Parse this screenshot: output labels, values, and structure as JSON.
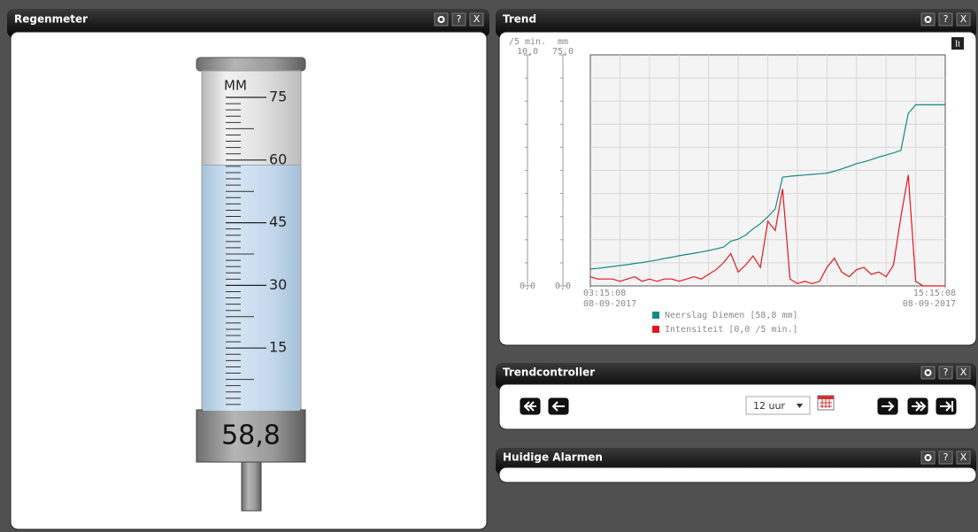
{
  "panels": [
    {
      "title": "Regenmeter",
      "buttons": [
        "?",
        "X"
      ]
    },
    {
      "title": "Trend",
      "buttons": [
        "?",
        "X"
      ]
    },
    {
      "title": "Trendcontroller",
      "buttons": [
        "?",
        "X"
      ]
    },
    {
      "title": "Huidige Alarmen",
      "buttons": [
        "?",
        "X"
      ]
    }
  ],
  "rain_gauge": {
    "unit": "MM",
    "value": 58.8,
    "value_label": "58,8",
    "ylim": [
      0,
      75
    ],
    "yticks": [
      15,
      30,
      45,
      60,
      75
    ]
  },
  "trend": {
    "type": "line",
    "x": [
      "2017-09-08T03:15:08",
      "2017-09-08T03:30:08",
      "2017-09-08T03:45:08",
      "2017-09-08T04:00:08",
      "2017-09-08T04:15:08",
      "2017-09-08T04:30:08",
      "2017-09-08T04:45:08",
      "2017-09-08T05:00:08",
      "2017-09-08T05:15:08",
      "2017-09-08T05:30:08",
      "2017-09-08T05:45:08",
      "2017-09-08T06:00:08",
      "2017-09-08T06:15:08",
      "2017-09-08T06:30:08",
      "2017-09-08T06:45:08",
      "2017-09-08T07:00:08",
      "2017-09-08T07:15:08",
      "2017-09-08T07:30:08",
      "2017-09-08T07:45:08",
      "2017-09-08T08:00:08",
      "2017-09-08T08:15:08",
      "2017-09-08T08:30:08",
      "2017-09-08T08:45:08",
      "2017-09-08T09:00:08",
      "2017-09-08T09:15:08",
      "2017-09-08T09:30:08",
      "2017-09-08T09:45:08",
      "2017-09-08T10:00:08",
      "2017-09-08T10:15:08",
      "2017-09-08T10:30:08",
      "2017-09-08T10:45:08",
      "2017-09-08T11:00:08",
      "2017-09-08T11:15:08",
      "2017-09-08T11:30:08",
      "2017-09-08T11:45:08",
      "2017-09-08T12:00:08",
      "2017-09-08T12:15:08",
      "2017-09-08T12:30:08",
      "2017-09-08T12:45:08",
      "2017-09-08T13:00:08",
      "2017-09-08T13:15:08",
      "2017-09-08T13:30:08",
      "2017-09-08T13:45:08",
      "2017-09-08T14:00:08",
      "2017-09-08T14:15:08",
      "2017-09-08T14:30:08",
      "2017-09-08T14:45:08",
      "2017-09-08T15:00:08",
      "2017-09-08T15:15:08"
    ],
    "xlim": [
      "2017-09-08T03:15:08",
      "2017-09-08T15:15:08"
    ],
    "xticks": [
      {
        "value": "2017-09-08T03:15:08",
        "label": [
          "03:15:08",
          "08-09-2017"
        ]
      },
      {
        "value": "2017-09-08T15:15:08",
        "label": [
          "15:15:08",
          "08-09-2017"
        ]
      }
    ],
    "ylabel": "mm",
    "ylim": [
      0,
      75
    ],
    "yticks": [
      {
        "value": 0,
        "label": "0,0"
      },
      {
        "value": 75,
        "label": "75,0"
      }
    ],
    "y2label": "/5 min.",
    "y2lim": [
      0,
      10
    ],
    "y2ticks": [
      {
        "value": 0,
        "label": "0,0"
      },
      {
        "value": 10,
        "label": "10,0"
      }
    ],
    "grid": true,
    "series": [
      {
        "name": "Neerslag Diemen [58,8 mm]",
        "color": "#138a85",
        "values": [
          5.5,
          5.7,
          6.0,
          6.3,
          6.6,
          6.9,
          7.3,
          7.6,
          8.0,
          8.4,
          8.9,
          9.3,
          9.8,
          10.2,
          10.6,
          11.0,
          11.5,
          12.0,
          12.6,
          14.5,
          15.2,
          16.5,
          18.5,
          20.2,
          22.4,
          25.0,
          35.3,
          35.6,
          35.8,
          36.0,
          36.2,
          36.4,
          36.6,
          37.2,
          38.0,
          38.8,
          39.7,
          40.3,
          41.0,
          41.8,
          42.5,
          43.2,
          44.0,
          56.0,
          58.8,
          58.8,
          58.8,
          58.8,
          58.8
        ]
      },
      {
        "name": "Intensiteit [0,0 /5 min.]",
        "color": "#e8141c",
        "axis": "y2",
        "values": [
          0.4,
          0.3,
          0.3,
          0.3,
          0.2,
          0.3,
          0.4,
          0.2,
          0.3,
          0.2,
          0.3,
          0.3,
          0.2,
          0.3,
          0.4,
          0.3,
          0.5,
          0.7,
          1.0,
          1.4,
          0.6,
          0.9,
          1.3,
          0.8,
          2.8,
          2.4,
          4.2,
          0.3,
          0.1,
          0.2,
          0.1,
          0.2,
          0.8,
          1.2,
          0.6,
          0.4,
          0.7,
          0.8,
          0.5,
          0.6,
          0.4,
          0.9,
          3.0,
          4.8,
          0.2,
          0.0,
          0.0,
          0.0,
          0.0
        ]
      }
    ]
  },
  "trend_controller": {
    "period": "12 uur"
  }
}
